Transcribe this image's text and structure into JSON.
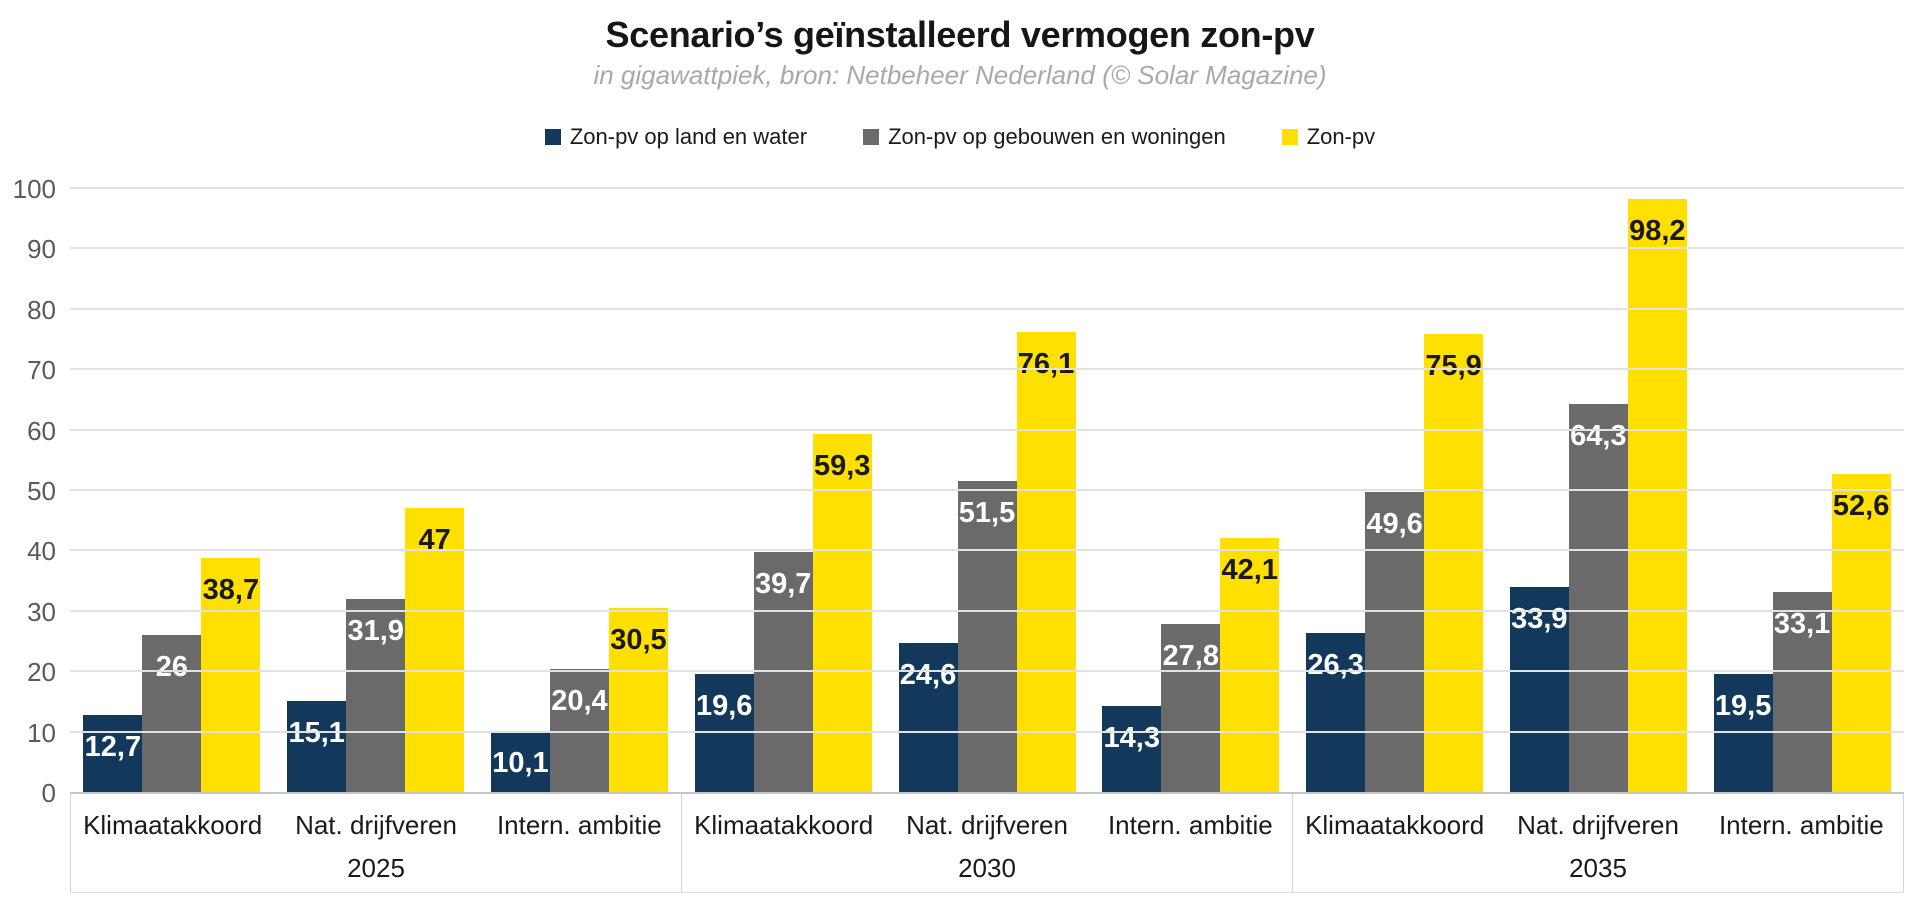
{
  "header": {
    "title": "Scenario’s geïnstalleerd vermogen zon-pv",
    "subtitle": "in gigawattpiek, bron: Netbeheer Nederland (© Solar Magazine)"
  },
  "legend": {
    "items": [
      {
        "id": "zon-pv-op-land-en-water",
        "label": "Zon-pv op land en water",
        "color": "#12395b"
      },
      {
        "id": "zon-pv-op-gebouwen-en-woningen",
        "label": "Zon-pv op gebouwen en woningen",
        "color": "#6a6a6a"
      },
      {
        "id": "zon-pv",
        "label": "Zon-pv",
        "color": "#ffe000"
      }
    ]
  },
  "colors": {
    "navy": "#12395b",
    "gray": "#6a6a6a",
    "yellow": "#ffe000",
    "gridline": "#e2e2e2",
    "axis_line": "#c6c6c6",
    "tick_text": "#5a5a5a",
    "title_text": "#161616",
    "subtitle_text": "#a9a9a9"
  },
  "chart_data": {
    "type": "bar",
    "title": "Scenario’s geïnstalleerd vermogen zon-pv",
    "subtitle": "in gigawattpiek, bron: Netbeheer Nederland (© Solar Magazine)",
    "unit": "gigawattpiek",
    "ylim": [
      0,
      100
    ],
    "yticks": [
      0,
      10,
      20,
      30,
      40,
      50,
      60,
      70,
      80,
      90,
      100
    ],
    "grid": "horizontal",
    "legend_position": "top",
    "decimal_separator": "comma",
    "group_labels": [
      "2025",
      "2030",
      "2035"
    ],
    "categories": [
      "Klimaatakkoord",
      "Nat. drijfveren",
      "Intern. ambitie"
    ],
    "series": [
      {
        "id": "zon-pv-op-land-en-water",
        "name": "Zon-pv op land en water",
        "color": "#12395b",
        "label_color": "#ffffff",
        "values": [
          [
            12.7,
            15.1,
            10.1
          ],
          [
            19.6,
            24.6,
            14.3
          ],
          [
            26.3,
            33.9,
            19.5
          ]
        ],
        "value_labels": [
          [
            "12,7",
            "15,1",
            "10,1"
          ],
          [
            "19,6",
            "24,6",
            "14,3"
          ],
          [
            "26,3",
            "33,9",
            "19,5"
          ]
        ]
      },
      {
        "id": "zon-pv-op-gebouwen-en-woningen",
        "name": "Zon-pv op gebouwen en woningen",
        "color": "#6a6a6a",
        "label_color": "#ffffff",
        "values": [
          [
            26,
            31.9,
            20.4
          ],
          [
            39.7,
            51.5,
            27.8
          ],
          [
            49.6,
            64.3,
            33.1
          ]
        ],
        "value_labels": [
          [
            "26",
            "31,9",
            "20,4"
          ],
          [
            "39,7",
            "51,5",
            "27,8"
          ],
          [
            "49,6",
            "64,3",
            "33,1"
          ]
        ]
      },
      {
        "id": "zon-pv",
        "name": "Zon-pv",
        "color": "#ffe000",
        "label_color": "#1a1a1a",
        "values": [
          [
            38.7,
            47,
            30.5
          ],
          [
            59.3,
            76.1,
            42.1
          ],
          [
            75.9,
            98.2,
            52.6
          ]
        ],
        "value_labels": [
          [
            "38,7",
            "47",
            "30,5"
          ],
          [
            "59,3",
            "76,1",
            "42,1"
          ],
          [
            "75,9",
            "98,2",
            "52,6"
          ]
        ]
      }
    ]
  }
}
